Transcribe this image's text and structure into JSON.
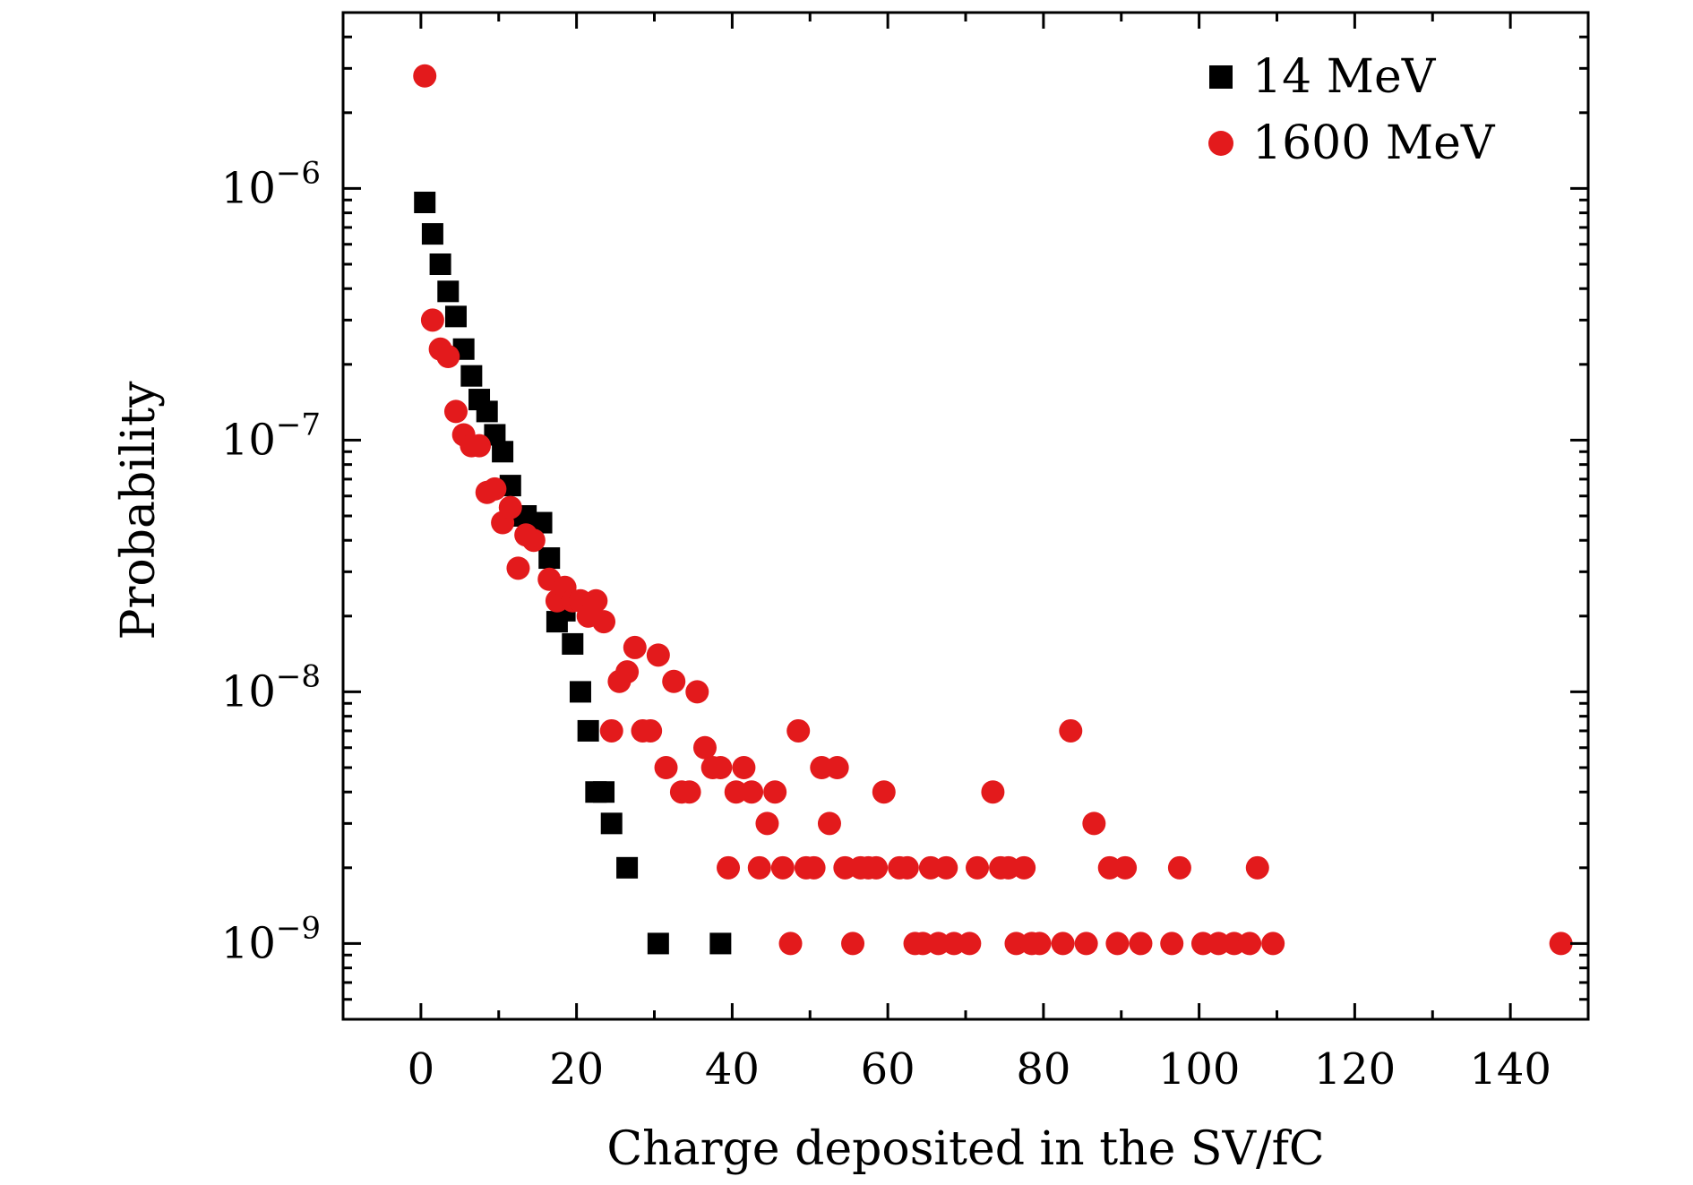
{
  "chart_data": {
    "type": "scatter",
    "title": "",
    "xlabel": "Charge deposited in the SV/fC",
    "ylabel": "Probability",
    "xlim": [
      -10,
      150
    ],
    "ylim": [
      5e-10,
      5e-06
    ],
    "yscale": "log",
    "x_ticks": [
      0,
      20,
      40,
      60,
      80,
      100,
      120,
      140
    ],
    "y_ticks": [
      {
        "value": 1e-09,
        "base": "10",
        "exp": "−9"
      },
      {
        "value": 1e-08,
        "base": "10",
        "exp": "−8"
      },
      {
        "value": 1e-07,
        "base": "10",
        "exp": "−7"
      },
      {
        "value": 1e-06,
        "base": "10",
        "exp": "−6"
      }
    ],
    "legend_position": "top-right",
    "series": [
      {
        "name": "14 MeV",
        "marker": "square",
        "color": "#000000",
        "points": [
          [
            0.5,
            8.8e-07
          ],
          [
            1.5,
            6.6e-07
          ],
          [
            2.5,
            5e-07
          ],
          [
            3.5,
            3.9e-07
          ],
          [
            4.5,
            3.1e-07
          ],
          [
            5.5,
            2.3e-07
          ],
          [
            6.5,
            1.8e-07
          ],
          [
            7.5,
            1.45e-07
          ],
          [
            8.5,
            1.3e-07
          ],
          [
            9.5,
            1.05e-07
          ],
          [
            10.5,
            9e-08
          ],
          [
            11.5,
            6.6e-08
          ],
          [
            12.5,
            5e-08
          ],
          [
            13.5,
            5e-08
          ],
          [
            15.5,
            4.7e-08
          ],
          [
            16.5,
            3.4e-08
          ],
          [
            17.5,
            1.9e-08
          ],
          [
            18.5,
            2.1e-08
          ],
          [
            19.5,
            1.55e-08
          ],
          [
            20.5,
            1e-08
          ],
          [
            21.5,
            7e-09
          ],
          [
            22.5,
            4e-09
          ],
          [
            23.5,
            4e-09
          ],
          [
            24.5,
            3e-09
          ],
          [
            26.5,
            2e-09
          ],
          [
            30.5,
            1e-09
          ],
          [
            38.5,
            1e-09
          ]
        ]
      },
      {
        "name": "1600 MeV",
        "marker": "circle",
        "color": "#e31a1c",
        "points": [
          [
            0.5,
            2.8e-06
          ],
          [
            1.5,
            3e-07
          ],
          [
            2.5,
            2.3e-07
          ],
          [
            3.5,
            2.15e-07
          ],
          [
            4.5,
            1.3e-07
          ],
          [
            5.5,
            1.05e-07
          ],
          [
            6.5,
            9.5e-08
          ],
          [
            7.5,
            9.5e-08
          ],
          [
            8.5,
            6.2e-08
          ],
          [
            9.5,
            6.4e-08
          ],
          [
            10.5,
            4.7e-08
          ],
          [
            11.5,
            5.4e-08
          ],
          [
            12.5,
            3.1e-08
          ],
          [
            13.5,
            4.2e-08
          ],
          [
            14.5,
            4e-08
          ],
          [
            16.5,
            2.8e-08
          ],
          [
            17.5,
            2.3e-08
          ],
          [
            18.5,
            2.6e-08
          ],
          [
            19.5,
            2.3e-08
          ],
          [
            20.5,
            2.3e-08
          ],
          [
            21.5,
            2e-08
          ],
          [
            22.5,
            2.3e-08
          ],
          [
            23.5,
            1.9e-08
          ],
          [
            24.5,
            7e-09
          ],
          [
            25.5,
            1.1e-08
          ],
          [
            26.5,
            1.2e-08
          ],
          [
            27.5,
            1.5e-08
          ],
          [
            28.5,
            7e-09
          ],
          [
            29.5,
            7e-09
          ],
          [
            30.5,
            1.4e-08
          ],
          [
            31.5,
            5e-09
          ],
          [
            32.5,
            1.1e-08
          ],
          [
            33.5,
            4e-09
          ],
          [
            34.5,
            4e-09
          ],
          [
            35.5,
            1e-08
          ],
          [
            36.5,
            6e-09
          ],
          [
            37.5,
            5e-09
          ],
          [
            38.5,
            5e-09
          ],
          [
            39.5,
            2e-09
          ],
          [
            40.5,
            4e-09
          ],
          [
            41.5,
            5e-09
          ],
          [
            42.5,
            4e-09
          ],
          [
            43.5,
            2e-09
          ],
          [
            44.5,
            3e-09
          ],
          [
            45.5,
            4e-09
          ],
          [
            46.5,
            2e-09
          ],
          [
            47.5,
            1e-09
          ],
          [
            48.5,
            7e-09
          ],
          [
            49.5,
            2e-09
          ],
          [
            50.5,
            2e-09
          ],
          [
            51.5,
            5e-09
          ],
          [
            52.5,
            3e-09
          ],
          [
            53.5,
            5e-09
          ],
          [
            54.5,
            2e-09
          ],
          [
            55.5,
            1e-09
          ],
          [
            56.5,
            2e-09
          ],
          [
            57.5,
            2e-09
          ],
          [
            58.5,
            2e-09
          ],
          [
            59.5,
            4e-09
          ],
          [
            61.5,
            2e-09
          ],
          [
            62.5,
            2e-09
          ],
          [
            63.5,
            1e-09
          ],
          [
            64.5,
            1e-09
          ],
          [
            65.5,
            2e-09
          ],
          [
            66.5,
            1e-09
          ],
          [
            67.5,
            2e-09
          ],
          [
            68.5,
            1e-09
          ],
          [
            70.5,
            1e-09
          ],
          [
            71.5,
            2e-09
          ],
          [
            73.5,
            4e-09
          ],
          [
            74.5,
            2e-09
          ],
          [
            75.5,
            2e-09
          ],
          [
            76.5,
            1e-09
          ],
          [
            77.5,
            2e-09
          ],
          [
            78.5,
            1e-09
          ],
          [
            79.5,
            1e-09
          ],
          [
            82.5,
            1e-09
          ],
          [
            83.5,
            7e-09
          ],
          [
            85.5,
            1e-09
          ],
          [
            86.5,
            3e-09
          ],
          [
            88.5,
            2e-09
          ],
          [
            89.5,
            1e-09
          ],
          [
            90.5,
            2e-09
          ],
          [
            92.5,
            1e-09
          ],
          [
            96.5,
            1e-09
          ],
          [
            97.5,
            2e-09
          ],
          [
            100.5,
            1e-09
          ],
          [
            102.5,
            1e-09
          ],
          [
            104.5,
            1e-09
          ],
          [
            106.5,
            1e-09
          ],
          [
            107.5,
            2e-09
          ],
          [
            109.5,
            1e-09
          ],
          [
            146.5,
            1e-09
          ]
        ]
      }
    ]
  }
}
